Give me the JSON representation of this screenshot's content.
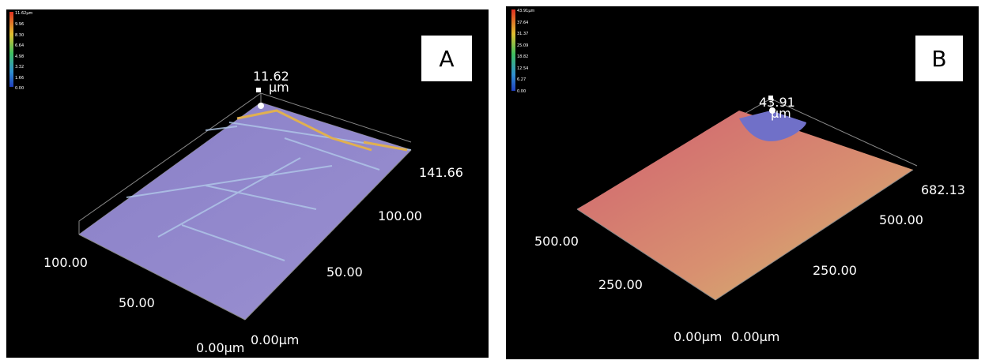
{
  "panels": [
    {
      "label": "A",
      "color_scale": [
        "11.62µm",
        "9.96",
        "8.30",
        "6.64",
        "4.98",
        "3.32",
        "1.66",
        "0.00"
      ],
      "z_axis": {
        "max": "11.62",
        "unit": "µm"
      },
      "right_axis": [
        "141.66",
        "100.00",
        "50.00",
        "0.00µm"
      ],
      "left_axis": [
        "100.00",
        "50.00",
        "0.00µm"
      ]
    },
    {
      "label": "B",
      "color_scale": [
        "43.91µm",
        "37.64",
        "31.37",
        "25.09",
        "18.82",
        "12.54",
        "6.27",
        "0.00"
      ],
      "z_axis": {
        "max": "43.91",
        "unit": "µm"
      },
      "right_axis": [
        "682.13",
        "500.00",
        "250.00",
        "0.00µm"
      ],
      "left_axis": [
        "500.00",
        "250.00",
        "0.00µm"
      ]
    }
  ]
}
